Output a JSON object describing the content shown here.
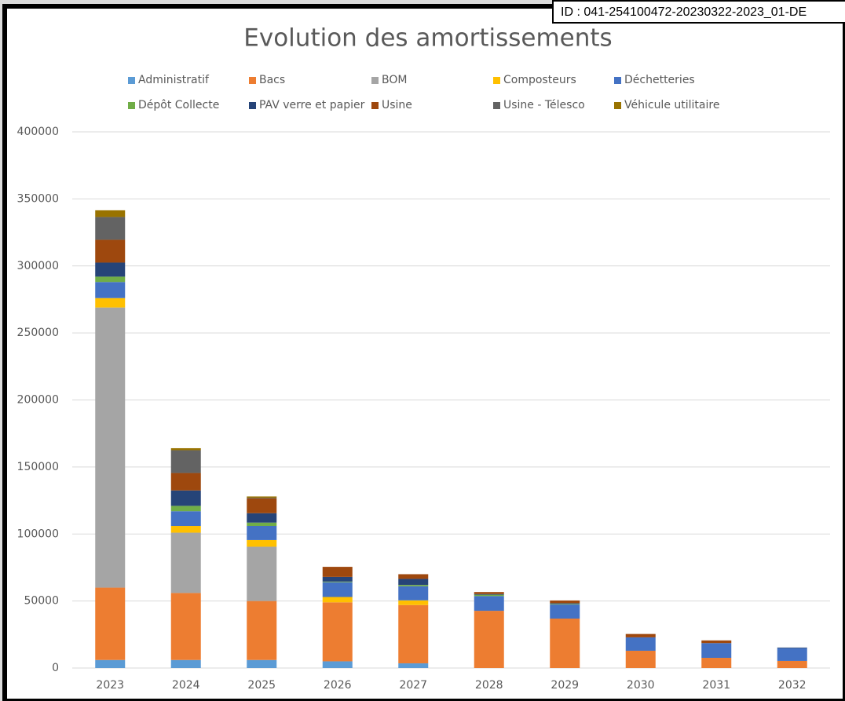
{
  "stamp": "ID : 041-254100472-20230322-2023_01-DE",
  "chart_data": {
    "type": "stacked-bar",
    "title": "Evolution des amortissements",
    "categories": [
      "2023",
      "2024",
      "2025",
      "2026",
      "2027",
      "2028",
      "2029",
      "2030",
      "2031",
      "2032"
    ],
    "series": [
      {
        "name": "Administratif",
        "color": "#5b9bd5",
        "values": [
          6000,
          6000,
          6000,
          5000,
          3500,
          0,
          0,
          0,
          0,
          0
        ]
      },
      {
        "name": "Bacs",
        "color": "#ed7d31",
        "values": [
          54000,
          50000,
          44000,
          44000,
          43500,
          42700,
          36900,
          12900,
          7600,
          5300
        ]
      },
      {
        "name": "BOM",
        "color": "#a5a5a5",
        "values": [
          209000,
          45000,
          40500,
          0,
          0,
          0,
          0,
          0,
          0,
          0
        ]
      },
      {
        "name": "Composteurs",
        "color": "#ffc000",
        "values": [
          7000,
          5000,
          5000,
          4000,
          3500,
          0,
          0,
          0,
          0,
          0
        ]
      },
      {
        "name": "Déchetteries",
        "color": "#4472c4",
        "values": [
          12000,
          11000,
          10500,
          11000,
          10500,
          11000,
          10500,
          10000,
          11000,
          9500
        ]
      },
      {
        "name": "Dépôt Collecte",
        "color": "#70ad47",
        "values": [
          4000,
          4000,
          2500,
          500,
          1000,
          1000,
          500,
          0,
          0,
          0
        ]
      },
      {
        "name": "PAV verre et papier",
        "color": "#264478",
        "values": [
          10500,
          11500,
          7000,
          3500,
          4500,
          500,
          500,
          0,
          0,
          500
        ]
      },
      {
        "name": "Usine",
        "color": "#9e480e",
        "values": [
          17000,
          13000,
          11000,
          7500,
          3500,
          1500,
          2000,
          2500,
          2000,
          0
        ]
      },
      {
        "name": "Usine - Télesco",
        "color": "#636363",
        "values": [
          17000,
          17000,
          500,
          0,
          0,
          0,
          0,
          0,
          0,
          0
        ]
      },
      {
        "name": "Véhicule utilitaire",
        "color": "#997300",
        "values": [
          5000,
          1500,
          1000,
          0,
          0,
          0,
          0,
          0,
          0,
          0
        ]
      }
    ],
    "ylim": [
      0,
      400000
    ],
    "yticks": [
      0,
      50000,
      100000,
      150000,
      200000,
      250000,
      300000,
      350000,
      400000
    ],
    "grid": true
  }
}
